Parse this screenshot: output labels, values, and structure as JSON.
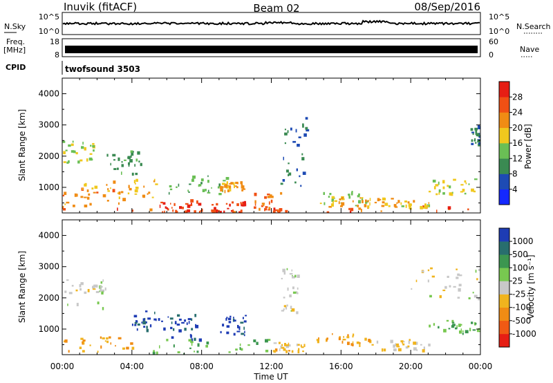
{
  "header": {
    "station": "Inuvik (fitACF)",
    "beam": "Beam 02",
    "date": "08/Sep/2016"
  },
  "strips": {
    "nsky_label": "N.Sky",
    "nsky_ticks": [
      "10^5",
      "10^0"
    ],
    "nsearch_label": "N.Search",
    "nsearch_ticks": [
      "10^5",
      "10^0"
    ],
    "freq_label_1": "Freq.",
    "freq_label_2": "[MHz]",
    "freq_ticks": [
      "18",
      "8"
    ],
    "nave_label": "Nave",
    "nave_ticks": [
      "60",
      "0"
    ],
    "cpid_label": "CPID",
    "cpid_value": "twofsound 3503"
  },
  "colors": {
    "power": [
      "#1428ff",
      "#1e4bb4",
      "#3a8a52",
      "#6abf55",
      "#f0c81e",
      "#f08c14",
      "#f05014",
      "#e61e14"
    ],
    "velocity": [
      "#e61e14",
      "#f05a14",
      "#f08c14",
      "#f0b41e",
      "#c8c8c8",
      "#78c850",
      "#3c9650",
      "#286e6e",
      "#1e3cb4"
    ]
  },
  "chart_data": [
    {
      "type": "heatmap",
      "title": "",
      "xlabel": "Time UT",
      "ylabel": "Slant Range [km]",
      "x_ticks": [
        "00:00",
        "04:00",
        "08:00",
        "12:00",
        "16:00",
        "20:00",
        "00:00"
      ],
      "y_ticks": [
        1000,
        2000,
        3000,
        4000
      ],
      "xlim_hours": [
        0,
        24
      ],
      "ylim_km": [
        180,
        4500
      ],
      "colorbar": {
        "label": "Power [dB]",
        "ticks": [
          4,
          8,
          12,
          16,
          20,
          24,
          28
        ],
        "range": [
          0,
          32
        ]
      },
      "regions": [
        {
          "t0": 0.0,
          "t1": 24.0,
          "r0": 200,
          "r1": 420,
          "value": 26
        },
        {
          "t0": 0.0,
          "t1": 3.5,
          "r0": 400,
          "r1": 1000,
          "value": 22
        },
        {
          "t0": 1.0,
          "t1": 5.5,
          "r0": 700,
          "r1": 1300,
          "value": 19
        },
        {
          "t0": 0.0,
          "t1": 2.0,
          "r0": 1700,
          "r1": 2500,
          "value": 15
        },
        {
          "t0": 2.5,
          "t1": 4.5,
          "r0": 1400,
          "r1": 2200,
          "value": 11
        },
        {
          "t0": 5.5,
          "t1": 8.0,
          "r0": 200,
          "r1": 650,
          "value": 27
        },
        {
          "t0": 6.0,
          "t1": 9.5,
          "r0": 800,
          "r1": 1400,
          "value": 13
        },
        {
          "t0": 8.5,
          "t1": 10.5,
          "r0": 200,
          "r1": 600,
          "value": 27
        },
        {
          "t0": 9.0,
          "t1": 10.5,
          "r0": 900,
          "r1": 1200,
          "value": 21
        },
        {
          "t0": 11.0,
          "t1": 12.5,
          "r0": 200,
          "r1": 850,
          "value": 25
        },
        {
          "t0": 12.5,
          "t1": 14.0,
          "r0": 1000,
          "r1": 3300,
          "value": 9
        },
        {
          "t0": 14.5,
          "t1": 17.5,
          "r0": 400,
          "r1": 900,
          "value": 14
        },
        {
          "t0": 15.5,
          "t1": 19.0,
          "r0": 400,
          "r1": 700,
          "value": 20
        },
        {
          "t0": 18.5,
          "t1": 21.5,
          "r0": 350,
          "r1": 600,
          "value": 18
        },
        {
          "t0": 21.0,
          "t1": 23.8,
          "r0": 800,
          "r1": 1300,
          "value": 17
        },
        {
          "t0": 23.4,
          "t1": 24.0,
          "r0": 2400,
          "r1": 3000,
          "value": 9
        }
      ]
    },
    {
      "type": "heatmap",
      "title": "",
      "xlabel": "Time UT",
      "ylabel": "Slant Range [km]",
      "x_ticks": [
        "00:00",
        "04:00",
        "08:00",
        "12:00",
        "16:00",
        "20:00",
        "00:00"
      ],
      "y_ticks": [
        1000,
        2000,
        3000,
        4000
      ],
      "xlim_hours": [
        0,
        24
      ],
      "ylim_km": [
        180,
        4500
      ],
      "colorbar": {
        "label": "Velocity [m s⁻¹]",
        "ticks": [
          1000,
          500,
          100,
          25,
          -25,
          -100,
          -500,
          -1000
        ],
        "range": [
          -1000,
          1000
        ]
      },
      "regions": [
        {
          "t0": 0.0,
          "t1": 4.0,
          "r0": 300,
          "r1": 900,
          "value": -300
        },
        {
          "t0": 0.0,
          "t1": 2.5,
          "r0": 1700,
          "r1": 2600,
          "value": 0
        },
        {
          "t0": 4.0,
          "t1": 6.0,
          "r0": 1000,
          "r1": 1600,
          "value": 900
        },
        {
          "t0": 6.0,
          "t1": 8.0,
          "r0": 700,
          "r1": 1500,
          "value": 800
        },
        {
          "t0": 9.0,
          "t1": 10.5,
          "r0": 800,
          "r1": 1500,
          "value": 900
        },
        {
          "t0": 5.0,
          "t1": 12.0,
          "r0": 200,
          "r1": 700,
          "value": 300
        },
        {
          "t0": 12.0,
          "t1": 14.0,
          "r0": 300,
          "r1": 600,
          "value": -200
        },
        {
          "t0": 14.5,
          "t1": 18.0,
          "r0": 500,
          "r1": 900,
          "value": -300
        },
        {
          "t0": 18.0,
          "t1": 21.0,
          "r0": 350,
          "r1": 700,
          "value": -100
        },
        {
          "t0": 21.0,
          "t1": 24.0,
          "r0": 800,
          "r1": 1300,
          "value": 300
        },
        {
          "t0": 12.5,
          "t1": 13.5,
          "r0": 1500,
          "r1": 3000,
          "value": 0
        },
        {
          "t0": 20.0,
          "t1": 24.0,
          "r0": 2000,
          "r1": 3000,
          "value": 0
        }
      ]
    }
  ]
}
